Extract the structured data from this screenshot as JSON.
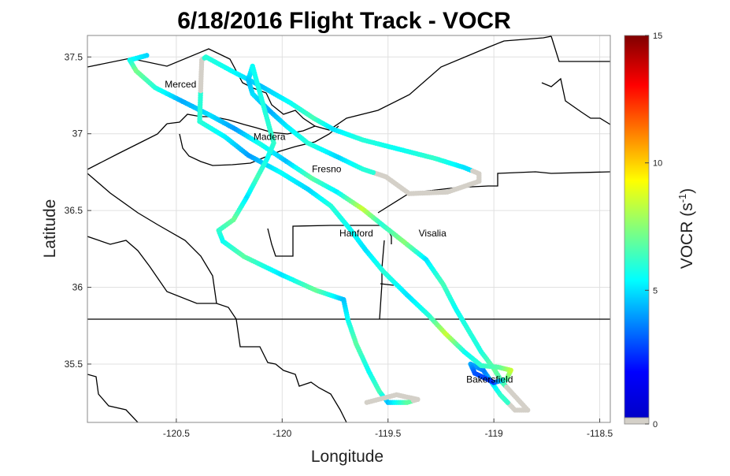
{
  "chart_data": {
    "type": "scatter",
    "title": "6/18/2016 Flight Track - VOCR",
    "xlabel": "Longitude",
    "ylabel": "Latitude",
    "xlim": [
      -120.92,
      -118.45
    ],
    "ylim": [
      35.12,
      37.64
    ],
    "xticks": [
      -120.5,
      -120,
      -119.5,
      -119,
      -118.5
    ],
    "yticks": [
      35.5,
      36,
      36.5,
      37,
      37.5
    ],
    "grid": true,
    "colorbar": {
      "label": "VOCR (s-1)",
      "label_main": "VOCR (s",
      "label_sup": "-1",
      "label_close": ")",
      "range": [
        0,
        15
      ],
      "ticks": [
        0,
        5,
        10,
        15
      ],
      "no_data_color": "#d4d0c8",
      "colormap": "jet"
    },
    "cities": [
      {
        "name": "Merced",
        "lon": -120.48,
        "lat": 37.3
      },
      {
        "name": "Madera",
        "lon": -120.06,
        "lat": 36.96
      },
      {
        "name": "Fresno",
        "lon": -119.79,
        "lat": 36.75
      },
      {
        "name": "Hanford",
        "lon": -119.65,
        "lat": 36.33
      },
      {
        "name": "Visalia",
        "lon": -119.29,
        "lat": 36.33
      },
      {
        "name": "Bakersfield",
        "lon": -119.02,
        "lat": 35.38
      }
    ],
    "track": [
      {
        "lon": -120.64,
        "lat": 37.51,
        "v": 4.8
      },
      {
        "lon": -120.72,
        "lat": 37.48,
        "v": 5.5
      },
      {
        "lon": -120.69,
        "lat": 37.41,
        "v": 7.2
      },
      {
        "lon": -120.6,
        "lat": 37.3,
        "v": 6.0
      },
      {
        "lon": -120.47,
        "lat": 37.21,
        "v": 4.2
      },
      {
        "lon": -120.34,
        "lat": 37.12,
        "v": 5.0
      },
      {
        "lon": -120.22,
        "lat": 37.03,
        "v": 4.0
      },
      {
        "lon": -120.1,
        "lat": 36.93,
        "v": 5.8
      },
      {
        "lon": -119.98,
        "lat": 36.82,
        "v": 4.5
      },
      {
        "lon": -119.86,
        "lat": 36.71,
        "v": 6.8
      },
      {
        "lon": -119.74,
        "lat": 36.62,
        "v": 5.2
      },
      {
        "lon": -119.62,
        "lat": 36.51,
        "v": 8.5
      },
      {
        "lon": -119.53,
        "lat": 36.41,
        "v": 6.0
      },
      {
        "lon": -119.42,
        "lat": 36.29,
        "v": 7.5
      },
      {
        "lon": -119.32,
        "lat": 36.18,
        "v": 5.0
      },
      {
        "lon": -119.24,
        "lat": 36.02,
        "v": 6.5
      },
      {
        "lon": -119.18,
        "lat": 35.86,
        "v": 5.5
      },
      {
        "lon": -119.12,
        "lat": 35.72,
        "v": 6.0
      },
      {
        "lon": -119.06,
        "lat": 35.58,
        "v": 5.8
      },
      {
        "lon": -119.0,
        "lat": 35.47,
        "v": 7.0
      },
      {
        "lon": -118.96,
        "lat": 35.38,
        "v": 6.5
      },
      {
        "lon": -118.92,
        "lat": 35.32,
        "v": null
      },
      {
        "lon": -118.84,
        "lat": 35.2,
        "v": null
      },
      {
        "lon": -118.9,
        "lat": 35.2,
        "v": null
      },
      {
        "lon": -118.97,
        "lat": 35.3,
        "v": 6.2
      },
      {
        "lon": -119.05,
        "lat": 35.46,
        "v": 3.5
      },
      {
        "lon": -119.11,
        "lat": 35.5,
        "v": 4.2
      },
      {
        "lon": -119.09,
        "lat": 35.44,
        "v": 3.0
      },
      {
        "lon": -119.0,
        "lat": 35.38,
        "v": 2.5
      },
      {
        "lon": -118.94,
        "lat": 35.4,
        "v": 6.5
      },
      {
        "lon": -118.92,
        "lat": 35.46,
        "v": 8.5
      },
      {
        "lon": -118.98,
        "lat": 35.48,
        "v": 6.8
      },
      {
        "lon": -119.06,
        "lat": 35.49,
        "v": 6.2
      },
      {
        "lon": -119.14,
        "lat": 35.58,
        "v": 5.5
      },
      {
        "lon": -119.23,
        "lat": 35.7,
        "v": 8.5
      },
      {
        "lon": -119.31,
        "lat": 35.82,
        "v": 6.0
      },
      {
        "lon": -119.41,
        "lat": 35.95,
        "v": 5.0
      },
      {
        "lon": -119.52,
        "lat": 36.1,
        "v": 6.0
      },
      {
        "lon": -119.61,
        "lat": 36.25,
        "v": 5.0
      },
      {
        "lon": -119.68,
        "lat": 36.38,
        "v": 5.5
      },
      {
        "lon": -119.77,
        "lat": 36.53,
        "v": 6.0
      },
      {
        "lon": -119.88,
        "lat": 36.64,
        "v": 4.8
      },
      {
        "lon": -120.01,
        "lat": 36.75,
        "v": 5.5
      },
      {
        "lon": -120.16,
        "lat": 36.86,
        "v": 4.0
      },
      {
        "lon": -120.27,
        "lat": 36.98,
        "v": 5.2
      },
      {
        "lon": -120.39,
        "lat": 37.08,
        "v": 6.0
      },
      {
        "lon": -120.38,
        "lat": 37.48,
        "v": null
      },
      {
        "lon": -120.36,
        "lat": 37.5,
        "v": 6.0
      },
      {
        "lon": -120.24,
        "lat": 37.41,
        "v": 5.5
      },
      {
        "lon": -120.1,
        "lat": 37.31,
        "v": 4.5
      },
      {
        "lon": -119.96,
        "lat": 37.2,
        "v": 5.5
      },
      {
        "lon": -119.85,
        "lat": 37.1,
        "v": 6.5
      },
      {
        "lon": -119.76,
        "lat": 37.03,
        "v": 5.0
      },
      {
        "lon": -119.62,
        "lat": 36.96,
        "v": 6.0
      },
      {
        "lon": -119.45,
        "lat": 36.9,
        "v": 5.5
      },
      {
        "lon": -119.28,
        "lat": 36.84,
        "v": 6.2
      },
      {
        "lon": -119.14,
        "lat": 36.78,
        "v": 5.0
      },
      {
        "lon": -119.07,
        "lat": 36.74,
        "v": null
      },
      {
        "lon": -119.07,
        "lat": 36.69,
        "v": null
      },
      {
        "lon": -119.22,
        "lat": 36.62,
        "v": null
      },
      {
        "lon": -119.4,
        "lat": 36.61,
        "v": null
      },
      {
        "lon": -119.51,
        "lat": 36.72,
        "v": null
      },
      {
        "lon": -119.62,
        "lat": 36.77,
        "v": 6.0
      },
      {
        "lon": -119.74,
        "lat": 36.85,
        "v": 4.8
      },
      {
        "lon": -119.88,
        "lat": 36.94,
        "v": 6.0
      },
      {
        "lon": -119.98,
        "lat": 37.05,
        "v": 5.2
      },
      {
        "lon": -120.06,
        "lat": 37.15,
        "v": 4.2
      },
      {
        "lon": -120.14,
        "lat": 37.26,
        "v": 5.0
      },
      {
        "lon": -120.16,
        "lat": 37.35,
        "v": 4.5
      },
      {
        "lon": -120.14,
        "lat": 37.44,
        "v": 5.5
      },
      {
        "lon": -120.04,
        "lat": 36.94,
        "v": 6.2
      },
      {
        "lon": -120.07,
        "lat": 36.84,
        "v": 5.5
      },
      {
        "lon": -120.12,
        "lat": 36.71,
        "v": 6.5
      },
      {
        "lon": -120.17,
        "lat": 36.58,
        "v": 5.0
      },
      {
        "lon": -120.23,
        "lat": 36.44,
        "v": 7.0
      },
      {
        "lon": -120.3,
        "lat": 36.37,
        "v": 6.2
      },
      {
        "lon": -120.28,
        "lat": 36.3,
        "v": 5.5
      },
      {
        "lon": -120.18,
        "lat": 36.2,
        "v": 6.8
      },
      {
        "lon": -120.0,
        "lat": 36.08,
        "v": 5.0
      },
      {
        "lon": -119.84,
        "lat": 35.98,
        "v": 7.0
      },
      {
        "lon": -119.71,
        "lat": 35.92,
        "v": 4.5
      },
      {
        "lon": -119.69,
        "lat": 35.79,
        "v": 5.5
      },
      {
        "lon": -119.65,
        "lat": 35.63,
        "v": 6.8
      },
      {
        "lon": -119.59,
        "lat": 35.45,
        "v": 5.5
      },
      {
        "lon": -119.54,
        "lat": 35.32,
        "v": 6.5
      },
      {
        "lon": -119.5,
        "lat": 35.25,
        "v": 4.5
      },
      {
        "lon": -119.41,
        "lat": 35.25,
        "v": 6.8
      },
      {
        "lon": -119.36,
        "lat": 35.27,
        "v": null
      },
      {
        "lon": -119.46,
        "lat": 35.3,
        "v": null
      },
      {
        "lon": -119.6,
        "lat": 35.25,
        "v": null
      }
    ]
  }
}
